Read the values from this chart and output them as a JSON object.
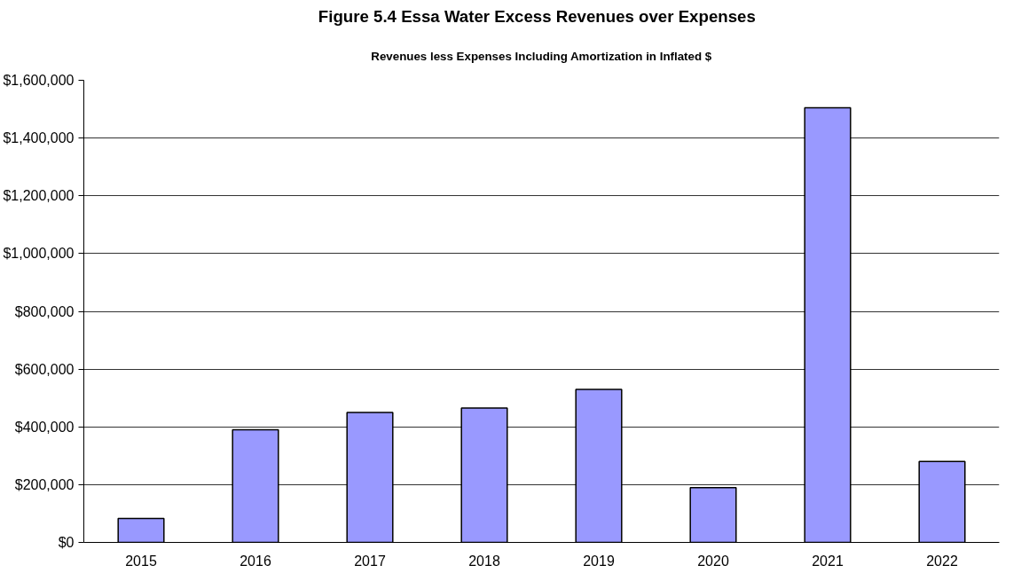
{
  "chart_data": {
    "type": "bar",
    "title": "Figure 5.4   Essa Water Excess Revenues over Expenses",
    "subtitle": "Revenues less Expenses Including Amortization in Inflated $",
    "categories": [
      "2015",
      "2016",
      "2017",
      "2018",
      "2019",
      "2020",
      "2021",
      "2022"
    ],
    "values": [
      83000,
      390000,
      450000,
      465000,
      530000,
      190000,
      1505000,
      280000
    ],
    "color": "#9999ff",
    "ylim": [
      0,
      1600000
    ],
    "yticks": [
      {
        "value": 0,
        "label": "$0"
      },
      {
        "value": 200000,
        "label": "$200,000"
      },
      {
        "value": 400000,
        "label": "$400,000"
      },
      {
        "value": 600000,
        "label": "$600,000"
      },
      {
        "value": 800000,
        "label": "$800,000"
      },
      {
        "value": 1000000,
        "label": "$1,000,000"
      },
      {
        "value": 1200000,
        "label": "$1,200,000"
      },
      {
        "value": 1400000,
        "label": "$1,400,000"
      },
      {
        "value": 1600000,
        "label": "$1,600,000"
      }
    ],
    "grid": "y"
  }
}
